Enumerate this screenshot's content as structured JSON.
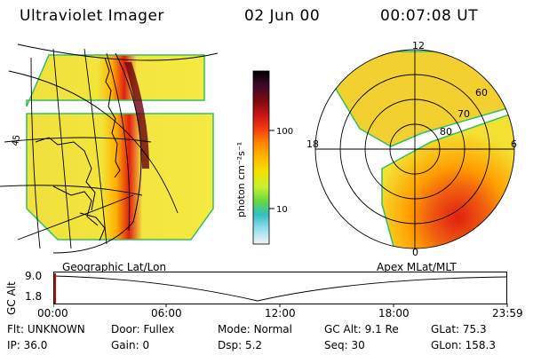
{
  "header": {
    "title": "Ultraviolet Imager",
    "date": "02 Jun 00",
    "time": "00:07:08 UT"
  },
  "colorbar": {
    "label": "photon cm⁻²s⁻¹",
    "ticks": [
      "100",
      "10"
    ],
    "colors": [
      "#000000",
      "#3a0a2a",
      "#7a0a10",
      "#c41414",
      "#f23a10",
      "#ff8a00",
      "#ffb800",
      "#f4e200",
      "#c8f030",
      "#6ad840",
      "#30c0c0",
      "#8ad8e8",
      "#c8ecf4",
      "#f0f0f0"
    ]
  },
  "geo_panel": {
    "caption": "Geographic Lat/Lon",
    "edge_label": "45"
  },
  "polar_panel": {
    "caption": "Apex MLat/MLT",
    "mlt_labels": {
      "top": "12",
      "left": "18",
      "right": "6",
      "bottom": "0"
    },
    "lat_labels": [
      "60",
      "70",
      "80"
    ]
  },
  "timeline": {
    "axis_label": "GC Alt",
    "y_ticks": [
      "9.0",
      "1.8"
    ],
    "x_ticks": [
      "00:00",
      "06:00",
      "12:00",
      "18:00",
      "23:59"
    ],
    "marker_color": "#d00000"
  },
  "info": {
    "row1": [
      {
        "label": "Flt:",
        "value": "UNKNOWN"
      },
      {
        "label": "Door:",
        "value": "Fullex"
      },
      {
        "label": "Mode:",
        "value": "Normal"
      },
      {
        "label": "GC Alt:",
        "value": "9.1 Re"
      },
      {
        "label": "GLat:",
        "value": "75.3"
      }
    ],
    "row2": [
      {
        "label": "IP:",
        "value": "36.0"
      },
      {
        "label": "Gain:",
        "value": "0"
      },
      {
        "label": "Dsp:",
        "value": "5.2"
      },
      {
        "label": "Seq:",
        "value": "30"
      },
      {
        "label": "GLon:",
        "value": "158.3"
      }
    ]
  }
}
